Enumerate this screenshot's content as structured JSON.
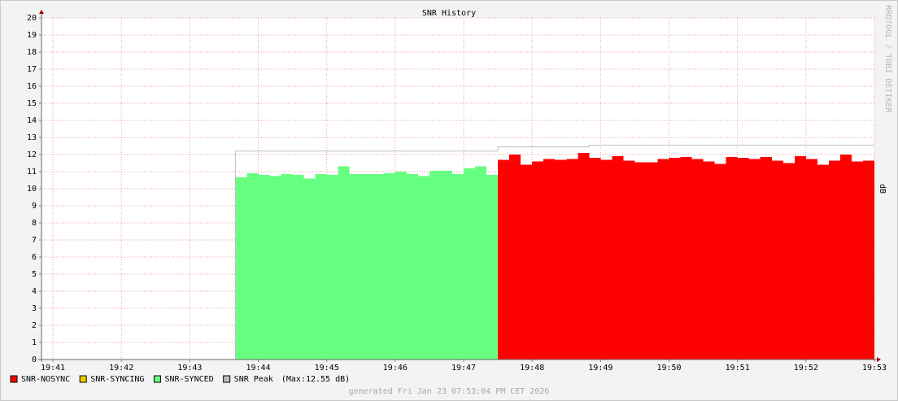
{
  "chart_data": {
    "type": "step-area",
    "title": "SNR History",
    "y_label": "dB",
    "watermark": "RRDTOOL / TOBI OETIKER",
    "footer": "generated Fri Jan 23 07:53:04 PM CET 2026",
    "peak_max_label": "(Max:12.55 dB)",
    "grid": true,
    "xlim": [
      70850,
      71580
    ],
    "xticks": [
      {
        "value": 70860,
        "label": "19:41"
      },
      {
        "value": 70920,
        "label": "19:42"
      },
      {
        "value": 70980,
        "label": "19:43"
      },
      {
        "value": 71040,
        "label": "19:44"
      },
      {
        "value": 71100,
        "label": "19:45"
      },
      {
        "value": 71160,
        "label": "19:46"
      },
      {
        "value": 71220,
        "label": "19:47"
      },
      {
        "value": 71280,
        "label": "19:48"
      },
      {
        "value": 71340,
        "label": "19:49"
      },
      {
        "value": 71400,
        "label": "19:50"
      },
      {
        "value": 71460,
        "label": "19:51"
      },
      {
        "value": 71520,
        "label": "19:52"
      },
      {
        "value": 71580,
        "label": "19:53"
      }
    ],
    "ylim": [
      0,
      20
    ],
    "yticks": [
      0,
      1,
      2,
      3,
      4,
      5,
      6,
      7,
      8,
      9,
      10,
      11,
      12,
      13,
      14,
      15,
      16,
      17,
      18,
      19,
      20
    ],
    "x": [
      71020,
      71030,
      71040,
      71050,
      71060,
      71070,
      71080,
      71090,
      71100,
      71110,
      71120,
      71130,
      71140,
      71150,
      71160,
      71170,
      71180,
      71190,
      71200,
      71210,
      71220,
      71230,
      71240,
      71250,
      71260,
      71270,
      71280,
      71290,
      71300,
      71310,
      71320,
      71330,
      71340,
      71350,
      71360,
      71370,
      71380,
      71390,
      71400,
      71410,
      71420,
      71430,
      71440,
      71450,
      71460,
      71470,
      71480,
      71490,
      71500,
      71510,
      71520,
      71530,
      71540,
      71550,
      71560,
      71570
    ],
    "series": [
      {
        "name": "SNR-NOSYNC",
        "color": "#ff0000",
        "style": "area",
        "values": [
          null,
          null,
          null,
          null,
          null,
          null,
          null,
          null,
          null,
          null,
          null,
          null,
          null,
          null,
          null,
          null,
          null,
          null,
          null,
          null,
          null,
          null,
          null,
          11.7,
          12.0,
          11.4,
          11.6,
          11.75,
          11.7,
          11.75,
          12.1,
          11.8,
          11.7,
          11.9,
          11.65,
          11.55,
          11.55,
          11.75,
          11.8,
          11.85,
          11.75,
          11.6,
          11.45,
          11.85,
          11.8,
          11.75,
          11.85,
          11.65,
          11.5,
          11.9,
          11.75,
          11.4,
          11.65,
          12.0,
          11.6,
          11.65
        ]
      },
      {
        "name": "SNR-SYNCING",
        "color": "#e8d000",
        "style": "area",
        "values": [
          null,
          null,
          null,
          null,
          null,
          null,
          null,
          null,
          null,
          null,
          null,
          null,
          null,
          null,
          null,
          null,
          null,
          null,
          null,
          null,
          null,
          null,
          null,
          null,
          null,
          null,
          null,
          null,
          null,
          null,
          null,
          null,
          null,
          null,
          null,
          null,
          null,
          null,
          null,
          null,
          null,
          null,
          null,
          null,
          null,
          null,
          null,
          null,
          null,
          null,
          null,
          null,
          null,
          null,
          null,
          null
        ]
      },
      {
        "name": "SNR-SYNCED",
        "color": "#66ff80",
        "style": "area",
        "values": [
          10.67,
          10.9,
          10.8,
          10.75,
          10.85,
          10.8,
          10.6,
          10.85,
          10.8,
          11.3,
          10.85,
          10.85,
          10.85,
          10.9,
          11.0,
          10.85,
          10.75,
          11.05,
          11.05,
          10.85,
          11.2,
          11.3,
          10.8,
          null,
          null,
          null,
          null,
          null,
          null,
          null,
          null,
          null,
          null,
          null,
          null,
          null,
          null,
          null,
          null,
          null,
          null,
          null,
          null,
          null,
          null,
          null,
          null,
          null,
          null,
          null,
          null,
          null,
          null,
          null,
          null,
          null
        ]
      },
      {
        "name": "SNR Peak",
        "color": "#c0c0c0",
        "style": "line",
        "values": [
          12.2,
          12.2,
          12.2,
          12.2,
          12.2,
          12.2,
          12.2,
          12.2,
          12.2,
          12.2,
          12.2,
          12.2,
          12.2,
          12.2,
          12.2,
          12.2,
          12.2,
          12.2,
          12.2,
          12.2,
          12.2,
          12.2,
          12.2,
          12.45,
          12.45,
          12.45,
          12.45,
          12.45,
          12.45,
          12.45,
          12.45,
          12.55,
          12.55,
          12.55,
          12.55,
          12.55,
          12.55,
          12.55,
          12.55,
          12.55,
          12.55,
          12.55,
          12.55,
          12.55,
          12.55,
          12.55,
          12.55,
          12.55,
          12.55,
          12.55,
          12.55,
          12.55,
          12.55,
          12.55,
          12.55,
          12.55
        ]
      }
    ]
  }
}
